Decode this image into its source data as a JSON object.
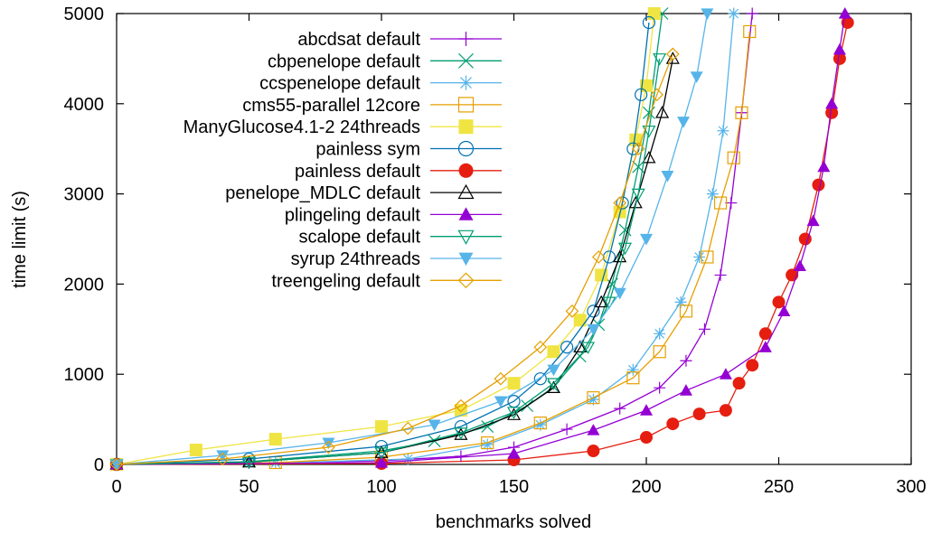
{
  "chart_data": {
    "type": "line",
    "title": "",
    "xlabel": "benchmarks solved",
    "ylabel": "time limit (s)",
    "xlim": [
      0,
      300
    ],
    "ylim": [
      0,
      5000
    ],
    "xticks": [
      0,
      50,
      100,
      150,
      200,
      250,
      300
    ],
    "yticks": [
      0,
      1000,
      2000,
      3000,
      4000,
      5000
    ],
    "legend_position": "top-left",
    "grid": false,
    "series": [
      {
        "name": "abcdsat default",
        "color": "#9400d3",
        "marker": "plus",
        "points": [
          [
            0,
            0
          ],
          [
            50,
            15
          ],
          [
            100,
            40
          ],
          [
            130,
            90
          ],
          [
            150,
            190
          ],
          [
            170,
            390
          ],
          [
            190,
            620
          ],
          [
            205,
            850
          ],
          [
            215,
            1150
          ],
          [
            222,
            1500
          ],
          [
            228,
            2100
          ],
          [
            232,
            2900
          ],
          [
            236,
            3900
          ],
          [
            240,
            5000
          ]
        ]
      },
      {
        "name": "cbpenelope default",
        "color": "#009e73",
        "marker": "x",
        "points": [
          [
            0,
            0
          ],
          [
            50,
            30
          ],
          [
            100,
            150
          ],
          [
            120,
            260
          ],
          [
            140,
            420
          ],
          [
            155,
            650
          ],
          [
            165,
            860
          ],
          [
            175,
            1200
          ],
          [
            182,
            1550
          ],
          [
            187,
            2000
          ],
          [
            192,
            2600
          ],
          [
            197,
            3300
          ],
          [
            201,
            3900
          ],
          [
            206,
            5000
          ]
        ]
      },
      {
        "name": "ccspenelope default",
        "color": "#56b4e9",
        "marker": "star",
        "points": [
          [
            0,
            0
          ],
          [
            60,
            15
          ],
          [
            110,
            60
          ],
          [
            140,
            220
          ],
          [
            160,
            440
          ],
          [
            180,
            720
          ],
          [
            195,
            1050
          ],
          [
            205,
            1450
          ],
          [
            213,
            1800
          ],
          [
            220,
            2300
          ],
          [
            225,
            3000
          ],
          [
            229,
            3700
          ],
          [
            233,
            5000
          ]
        ]
      },
      {
        "name": "cms55-parallel 12core",
        "color": "#e69f00",
        "marker": "square",
        "points": [
          [
            0,
            0
          ],
          [
            60,
            20
          ],
          [
            100,
            80
          ],
          [
            140,
            240
          ],
          [
            160,
            460
          ],
          [
            180,
            740
          ],
          [
            195,
            960
          ],
          [
            205,
            1250
          ],
          [
            215,
            1700
          ],
          [
            223,
            2300
          ],
          [
            228,
            2900
          ],
          [
            233,
            3400
          ],
          [
            236,
            3900
          ],
          [
            239,
            4800
          ]
        ]
      },
      {
        "name": "ManyGlucose4.1-2 24threads",
        "color": "#f0e442",
        "marker": "filled-square",
        "points": [
          [
            0,
            0
          ],
          [
            30,
            160
          ],
          [
            60,
            280
          ],
          [
            100,
            420
          ],
          [
            130,
            600
          ],
          [
            150,
            900
          ],
          [
            165,
            1250
          ],
          [
            175,
            1600
          ],
          [
            183,
            2100
          ],
          [
            190,
            2800
          ],
          [
            196,
            3600
          ],
          [
            200,
            4200
          ],
          [
            203,
            5000
          ]
        ]
      },
      {
        "name": "painless sym",
        "color": "#0072b2",
        "marker": "circle",
        "points": [
          [
            0,
            0
          ],
          [
            50,
            60
          ],
          [
            100,
            200
          ],
          [
            130,
            420
          ],
          [
            150,
            700
          ],
          [
            160,
            950
          ],
          [
            170,
            1300
          ],
          [
            180,
            1700
          ],
          [
            186,
            2300
          ],
          [
            191,
            2900
          ],
          [
            195,
            3500
          ],
          [
            198,
            4100
          ],
          [
            201,
            4900
          ]
        ]
      },
      {
        "name": "painless default",
        "color": "#e51e10",
        "marker": "filled-circle",
        "points": [
          [
            0,
            0
          ],
          [
            100,
            10
          ],
          [
            150,
            50
          ],
          [
            180,
            150
          ],
          [
            200,
            300
          ],
          [
            210,
            450
          ],
          [
            220,
            560
          ],
          [
            230,
            600
          ],
          [
            235,
            900
          ],
          [
            240,
            1100
          ],
          [
            245,
            1450
          ],
          [
            250,
            1800
          ],
          [
            255,
            2100
          ],
          [
            260,
            2500
          ],
          [
            265,
            3100
          ],
          [
            270,
            3900
          ],
          [
            273,
            4500
          ],
          [
            276,
            4900
          ]
        ]
      },
      {
        "name": "penelope_MDLC default",
        "color": "#000000",
        "marker": "triangle",
        "points": [
          [
            0,
            0
          ],
          [
            50,
            25
          ],
          [
            100,
            130
          ],
          [
            130,
            330
          ],
          [
            150,
            550
          ],
          [
            165,
            850
          ],
          [
            175,
            1300
          ],
          [
            183,
            1800
          ],
          [
            190,
            2300
          ],
          [
            196,
            2900
          ],
          [
            201,
            3400
          ],
          [
            206,
            3900
          ],
          [
            210,
            4500
          ]
        ]
      },
      {
        "name": "plingeling default",
        "color": "#9400d3",
        "marker": "filled-triangle",
        "points": [
          [
            0,
            0
          ],
          [
            100,
            20
          ],
          [
            150,
            120
          ],
          [
            180,
            380
          ],
          [
            200,
            600
          ],
          [
            215,
            820
          ],
          [
            230,
            1000
          ],
          [
            245,
            1300
          ],
          [
            252,
            1700
          ],
          [
            258,
            2200
          ],
          [
            263,
            2700
          ],
          [
            267,
            3300
          ],
          [
            270,
            4000
          ],
          [
            273,
            4600
          ],
          [
            275,
            5000
          ]
        ]
      },
      {
        "name": "scalope default",
        "color": "#009e73",
        "marker": "triangle-down",
        "points": [
          [
            0,
            0
          ],
          [
            50,
            25
          ],
          [
            100,
            130
          ],
          [
            130,
            350
          ],
          [
            150,
            580
          ],
          [
            165,
            900
          ],
          [
            178,
            1300
          ],
          [
            186,
            1800
          ],
          [
            192,
            2400
          ],
          [
            197,
            3000
          ],
          [
            201,
            3700
          ],
          [
            205,
            4500
          ]
        ]
      },
      {
        "name": "syrup 24threads",
        "color": "#56b4e9",
        "marker": "filled-triangle-down",
        "points": [
          [
            0,
            0
          ],
          [
            40,
            100
          ],
          [
            80,
            240
          ],
          [
            120,
            440
          ],
          [
            145,
            700
          ],
          [
            165,
            1050
          ],
          [
            180,
            1500
          ],
          [
            190,
            1900
          ],
          [
            200,
            2500
          ],
          [
            208,
            3200
          ],
          [
            214,
            3800
          ],
          [
            219,
            4300
          ],
          [
            223,
            5000
          ]
        ]
      },
      {
        "name": "treengeling default",
        "color": "#e69f00",
        "marker": "diamond",
        "points": [
          [
            0,
            0
          ],
          [
            40,
            60
          ],
          [
            80,
            190
          ],
          [
            110,
            400
          ],
          [
            130,
            650
          ],
          [
            145,
            950
          ],
          [
            160,
            1300
          ],
          [
            172,
            1700
          ],
          [
            182,
            2300
          ],
          [
            190,
            2900
          ],
          [
            197,
            3500
          ],
          [
            204,
            4100
          ],
          [
            210,
            4550
          ]
        ]
      }
    ]
  }
}
